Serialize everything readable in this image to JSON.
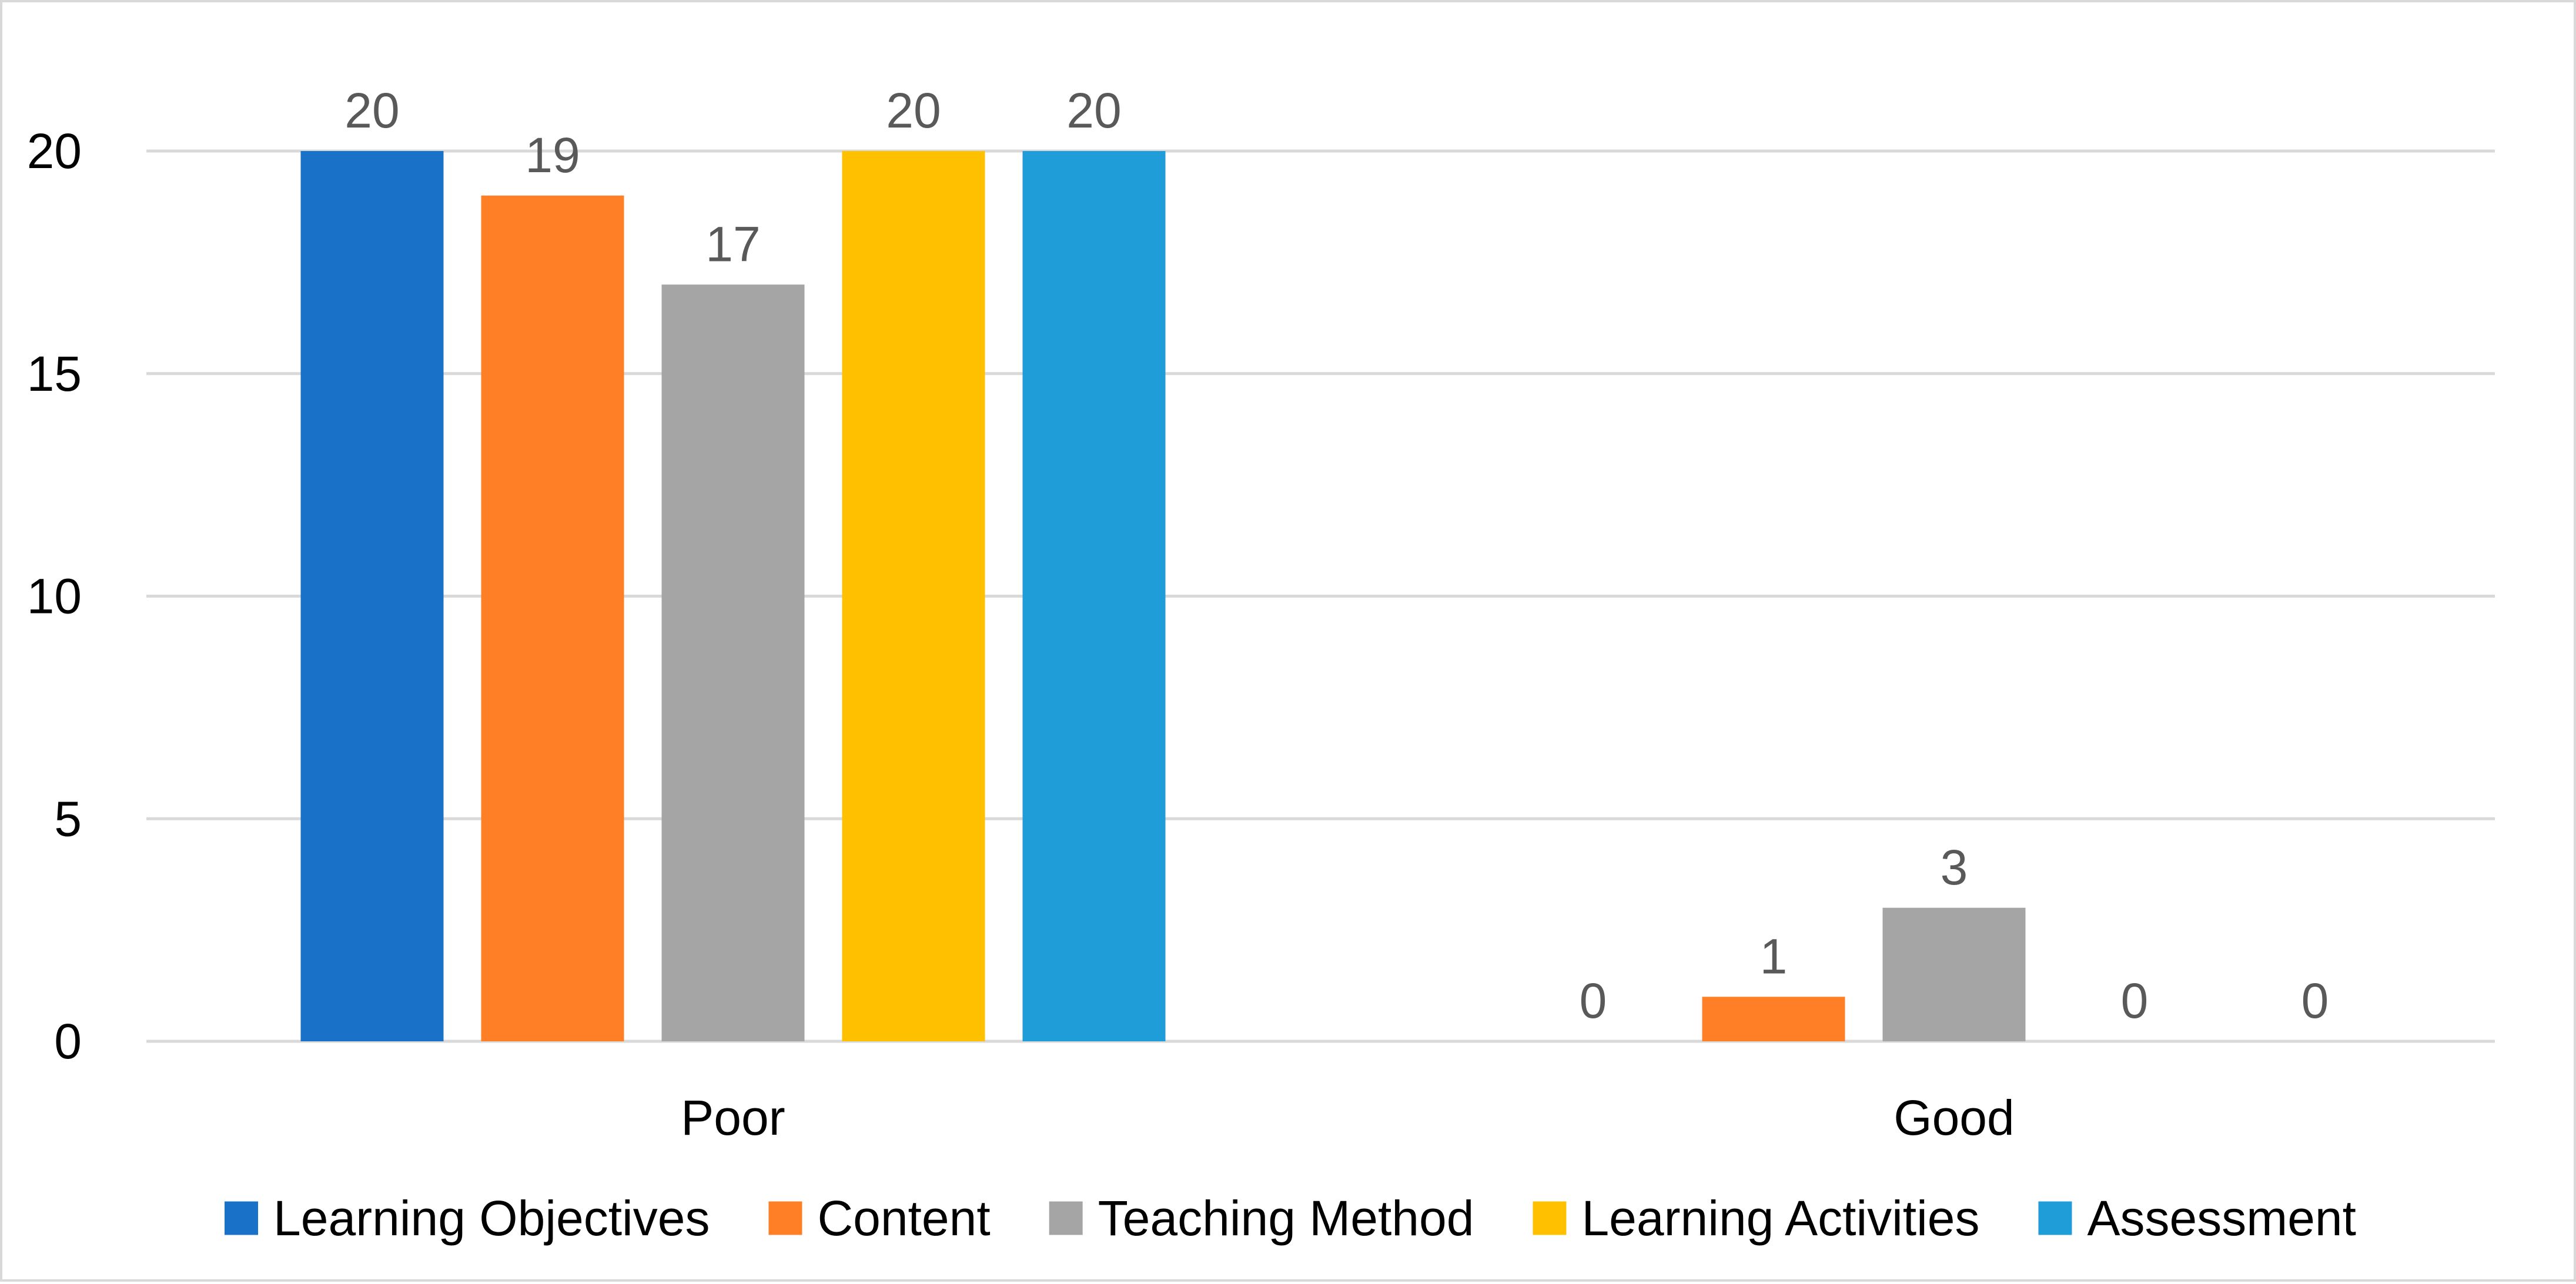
{
  "chart_data": {
    "type": "bar",
    "categories": [
      "Poor",
      "Good"
    ],
    "series": [
      {
        "name": "Learning Objectives",
        "color": "#1a71c8",
        "values": [
          20,
          0
        ]
      },
      {
        "name": "Content",
        "color": "#fe7f26",
        "values": [
          19,
          1
        ]
      },
      {
        "name": "Teaching Method",
        "color": "#a5a5a5",
        "values": [
          17,
          3
        ]
      },
      {
        "name": "Learning Activities",
        "color": "#ffc000",
        "values": [
          20,
          0
        ]
      },
      {
        "name": "Assessment",
        "color": "#1e9dd8",
        "values": [
          20,
          0
        ]
      }
    ],
    "ylim": [
      0,
      20
    ],
    "yticks": [
      0,
      5,
      10,
      15,
      20
    ],
    "data_labels": true,
    "grid": true,
    "legend_position": "bottom",
    "gridline_color": "#d9d9d9"
  }
}
